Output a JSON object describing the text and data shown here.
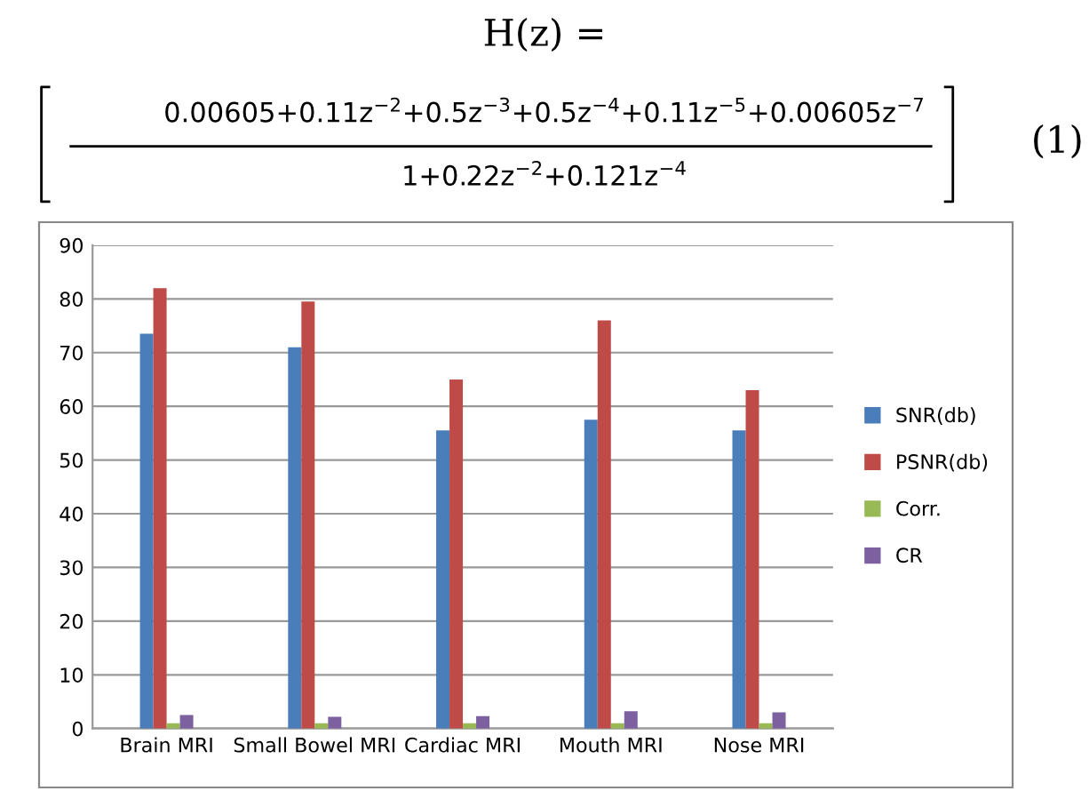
{
  "chart_data": {
    "type": "bar",
    "categories": [
      "Brain MRI",
      "Small Bowel MRI",
      "Cardiac MRI",
      "Mouth MRI",
      "Nose MRI"
    ],
    "series": [
      {
        "name": "SNR(db)",
        "color": "#4a7ebb",
        "values": [
          73.5,
          71,
          55.5,
          57.5,
          55.5
        ]
      },
      {
        "name": "PSNR(db)",
        "color": "#be4b48",
        "values": [
          82,
          79.5,
          65,
          76,
          63
        ]
      },
      {
        "name": "Corr.",
        "color": "#98b954",
        "values": [
          1,
          1,
          1,
          1,
          1
        ]
      },
      {
        "name": "CR",
        "color": "#7d60a0",
        "values": [
          2.5,
          2.2,
          2.3,
          3.2,
          3
        ]
      }
    ],
    "ylim": [
      0,
      90
    ],
    "yticks": [
      0,
      10,
      20,
      30,
      40,
      50,
      60,
      70,
      80,
      90
    ],
    "grid": "y",
    "legend": "right",
    "annotations": [
      "H(z) =",
      "0.00605+0.11z$^{−2}$+0.5z$^{−3}$+0.5z$^{−4}$+0.11z$^{−5}$+0.00605z$^{−7}$",
      "1+0.22z$^{−2}$+0.121z$^{−4}$",
      "(1)"
    ]
  }
}
